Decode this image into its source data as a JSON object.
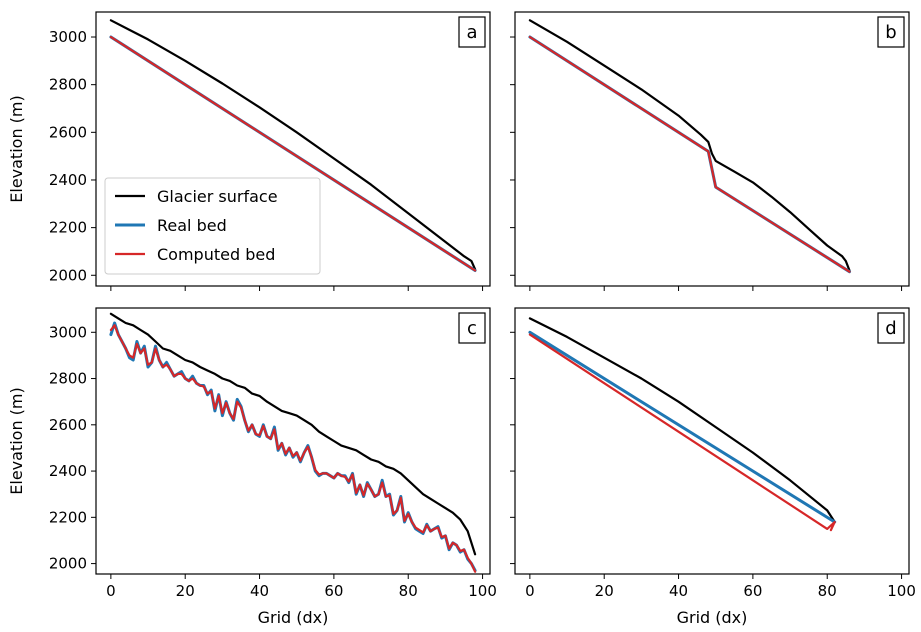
{
  "chart_data": [
    {
      "panel": "a",
      "type": "line",
      "xlim": [
        -4,
        102
      ],
      "ylim": [
        1955,
        3105
      ],
      "xlabel": "",
      "ylabel": "Elevation (m)",
      "legend": "bottom-left",
      "xticks": [
        0,
        20,
        40,
        60,
        80,
        100
      ],
      "yticks": [
        2000,
        2200,
        2400,
        2600,
        2800,
        3000
      ],
      "series": [
        {
          "name": "Glacier surface",
          "color": "#000000",
          "x": [
            0,
            10,
            20,
            30,
            40,
            50,
            60,
            70,
            80,
            90,
            95,
            97,
            98
          ],
          "y": [
            3070,
            2990,
            2900,
            2805,
            2705,
            2600,
            2490,
            2380,
            2260,
            2140,
            2080,
            2060,
            2025
          ]
        },
        {
          "name": "Real bed",
          "color": "#1f77b4",
          "x": [
            0,
            98
          ],
          "y": [
            3000,
            2020
          ]
        },
        {
          "name": "Computed bed",
          "color": "#d62728",
          "x": [
            0,
            98
          ],
          "y": [
            3000,
            2020
          ]
        }
      ]
    },
    {
      "panel": "b",
      "type": "line",
      "xlim": [
        -4,
        102
      ],
      "ylim": [
        1955,
        3105
      ],
      "xlabel": "",
      "ylabel": "",
      "xticks": [
        0,
        20,
        40,
        60,
        80,
        100
      ],
      "yticks": [
        2000,
        2200,
        2400,
        2600,
        2800,
        3000
      ],
      "series": [
        {
          "color": "#000000",
          "x": [
            0,
            10,
            20,
            30,
            40,
            46,
            48,
            49,
            50,
            55,
            60,
            65,
            70,
            75,
            80,
            84,
            85,
            86
          ],
          "y": [
            3070,
            2980,
            2880,
            2780,
            2670,
            2590,
            2560,
            2510,
            2480,
            2435,
            2390,
            2330,
            2265,
            2195,
            2125,
            2080,
            2060,
            2020
          ]
        },
        {
          "color": "#1f77b4",
          "x": [
            0,
            48,
            50,
            86
          ],
          "y": [
            3000,
            2520,
            2370,
            2015
          ]
        },
        {
          "color": "#d62728",
          "x": [
            0,
            48,
            50,
            86
          ],
          "y": [
            3000,
            2520,
            2370,
            2015
          ]
        }
      ]
    },
    {
      "panel": "c",
      "type": "line",
      "xlim": [
        -4,
        102
      ],
      "ylim": [
        1955,
        3105
      ],
      "xlabel": "Grid (dx)",
      "ylabel": "Elevation (m)",
      "xticks": [
        0,
        20,
        40,
        60,
        80,
        100
      ],
      "yticks": [
        2000,
        2200,
        2400,
        2600,
        2800,
        3000
      ],
      "series": [
        {
          "color": "#000000",
          "x": [
            0,
            2,
            4,
            6,
            8,
            10,
            12,
            14,
            16,
            18,
            20,
            22,
            24,
            26,
            28,
            30,
            32,
            34,
            36,
            38,
            40,
            42,
            44,
            46,
            48,
            50,
            52,
            54,
            56,
            58,
            60,
            62,
            64,
            66,
            68,
            70,
            72,
            74,
            76,
            78,
            80,
            82,
            84,
            86,
            88,
            90,
            92,
            94,
            96,
            98
          ],
          "y": [
            3080,
            3060,
            3040,
            3030,
            3010,
            2990,
            2960,
            2930,
            2920,
            2900,
            2880,
            2870,
            2850,
            2835,
            2820,
            2800,
            2790,
            2770,
            2760,
            2735,
            2725,
            2700,
            2680,
            2660,
            2650,
            2640,
            2620,
            2600,
            2570,
            2550,
            2530,
            2510,
            2500,
            2490,
            2470,
            2450,
            2440,
            2420,
            2410,
            2390,
            2360,
            2330,
            2300,
            2280,
            2260,
            2240,
            2220,
            2190,
            2140,
            2040
          ]
        },
        {
          "color": "#1f77b4",
          "x": [
            0,
            1,
            2,
            3,
            4,
            5,
            6,
            7,
            8,
            9,
            10,
            11,
            12,
            13,
            14,
            15,
            16,
            17,
            18,
            19,
            20,
            21,
            22,
            23,
            24,
            25,
            26,
            27,
            28,
            29,
            30,
            31,
            32,
            33,
            34,
            35,
            36,
            37,
            38,
            39,
            40,
            41,
            42,
            43,
            44,
            45,
            46,
            47,
            48,
            49,
            50,
            51,
            52,
            53,
            54,
            55,
            56,
            57,
            58,
            59,
            60,
            61,
            62,
            63,
            64,
            65,
            66,
            67,
            68,
            69,
            70,
            71,
            72,
            73,
            74,
            75,
            76,
            77,
            78,
            79,
            80,
            81,
            82,
            83,
            84,
            85,
            86,
            87,
            88,
            89,
            90,
            91,
            92,
            93,
            94,
            95,
            96,
            97,
            98
          ],
          "y": [
            2990,
            3040,
            2990,
            2960,
            2930,
            2890,
            2880,
            2960,
            2910,
            2940,
            2850,
            2870,
            2940,
            2880,
            2850,
            2870,
            2840,
            2810,
            2820,
            2830,
            2800,
            2790,
            2810,
            2780,
            2770,
            2770,
            2730,
            2750,
            2660,
            2730,
            2640,
            2700,
            2650,
            2620,
            2710,
            2680,
            2620,
            2570,
            2600,
            2560,
            2550,
            2600,
            2550,
            2540,
            2590,
            2490,
            2520,
            2470,
            2500,
            2460,
            2480,
            2440,
            2480,
            2510,
            2460,
            2400,
            2380,
            2390,
            2390,
            2380,
            2370,
            2390,
            2380,
            2380,
            2350,
            2390,
            2300,
            2340,
            2290,
            2350,
            2320,
            2290,
            2300,
            2360,
            2290,
            2300,
            2210,
            2230,
            2290,
            2180,
            2220,
            2180,
            2150,
            2140,
            2130,
            2170,
            2140,
            2150,
            2160,
            2110,
            2120,
            2060,
            2090,
            2080,
            2050,
            2060,
            2020,
            2000,
            1970
          ]
        },
        {
          "color": "#d62728",
          "x": [
            0,
            1,
            2,
            3,
            4,
            5,
            6,
            7,
            8,
            9,
            10,
            11,
            12,
            13,
            14,
            15,
            16,
            17,
            18,
            19,
            20,
            21,
            22,
            23,
            24,
            25,
            26,
            27,
            28,
            29,
            30,
            31,
            32,
            33,
            34,
            35,
            36,
            37,
            38,
            39,
            40,
            41,
            42,
            43,
            44,
            45,
            46,
            47,
            48,
            49,
            50,
            51,
            52,
            53,
            54,
            55,
            56,
            57,
            58,
            59,
            60,
            61,
            62,
            63,
            64,
            65,
            66,
            67,
            68,
            69,
            70,
            71,
            72,
            73,
            74,
            75,
            76,
            77,
            78,
            79,
            80,
            81,
            82,
            83,
            84,
            85,
            86,
            87,
            88,
            89,
            90,
            91,
            92,
            93,
            94,
            95,
            96,
            97,
            98
          ],
          "y": [
            3010,
            3030,
            2990,
            2960,
            2930,
            2900,
            2890,
            2950,
            2910,
            2930,
            2860,
            2870,
            2930,
            2880,
            2850,
            2860,
            2840,
            2810,
            2820,
            2820,
            2800,
            2790,
            2800,
            2780,
            2770,
            2765,
            2735,
            2745,
            2670,
            2725,
            2650,
            2695,
            2650,
            2625,
            2700,
            2675,
            2620,
            2575,
            2600,
            2560,
            2555,
            2595,
            2550,
            2540,
            2580,
            2495,
            2520,
            2475,
            2500,
            2465,
            2480,
            2445,
            2480,
            2505,
            2460,
            2405,
            2385,
            2390,
            2390,
            2380,
            2370,
            2390,
            2380,
            2375,
            2355,
            2385,
            2305,
            2340,
            2295,
            2345,
            2320,
            2290,
            2300,
            2350,
            2290,
            2295,
            2215,
            2230,
            2285,
            2185,
            2215,
            2180,
            2155,
            2145,
            2135,
            2165,
            2140,
            2150,
            2155,
            2115,
            2120,
            2065,
            2090,
            2080,
            2055,
            2060,
            2025,
            2000,
            1965
          ]
        }
      ]
    },
    {
      "panel": "d",
      "type": "line",
      "xlim": [
        -4,
        102
      ],
      "ylim": [
        1955,
        3105
      ],
      "xlabel": "Grid (dx)",
      "ylabel": "",
      "xticks": [
        0,
        20,
        40,
        60,
        80,
        100
      ],
      "yticks": [
        2000,
        2200,
        2400,
        2600,
        2800,
        3000
      ],
      "series": [
        {
          "color": "#000000",
          "x": [
            0,
            10,
            20,
            30,
            40,
            50,
            60,
            70,
            80,
            82
          ],
          "y": [
            3060,
            2980,
            2890,
            2800,
            2700,
            2590,
            2480,
            2360,
            2230,
            2180
          ]
        },
        {
          "color": "#1f77b4",
          "x": [
            0,
            82
          ],
          "y": [
            3000,
            2180
          ]
        },
        {
          "color": "#d62728",
          "x": [
            0,
            20,
            40,
            60,
            80,
            82,
            81
          ],
          "y": [
            2990,
            2780,
            2570,
            2360,
            2150,
            2180,
            2145
          ]
        }
      ]
    }
  ]
}
